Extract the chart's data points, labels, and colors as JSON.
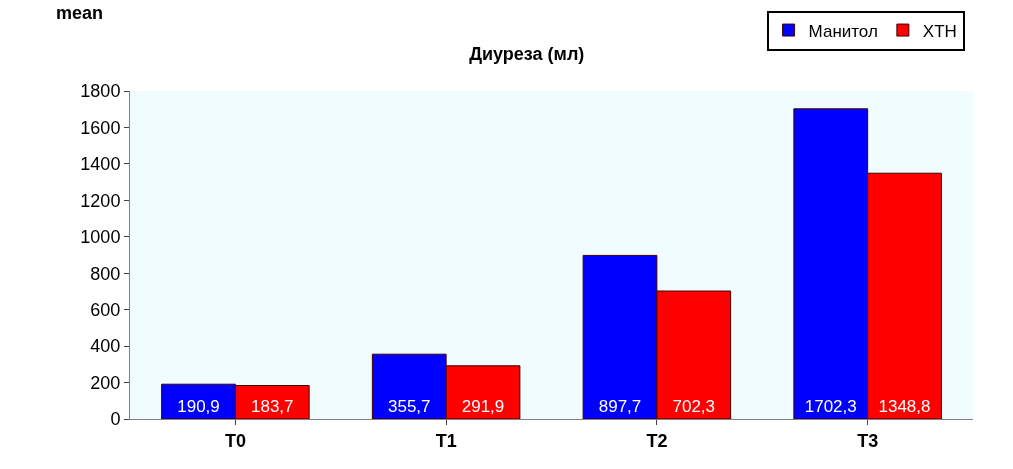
{
  "chart_data": {
    "type": "bar",
    "title": "Диуреза (мл)",
    "ylabel": "mean",
    "categories": [
      "T0",
      "T1",
      "T2",
      "T3"
    ],
    "series": [
      {
        "name": "Манитол",
        "color": "#0000ff",
        "values": [
          190.9,
          355.7,
          897.7,
          1702.3
        ],
        "value_labels": [
          "190,9",
          "355,7",
          "897,7",
          "1702,3"
        ]
      },
      {
        "name": "XTH",
        "color": "#ff0000",
        "values": [
          183.7,
          291.9,
          702.3,
          1348.8
        ],
        "value_labels": [
          "183,7",
          "291,9",
          "702,3",
          "1348,8"
        ]
      }
    ],
    "ylim": [
      0,
      1800
    ],
    "yticks": [
      0,
      200,
      400,
      600,
      800,
      1000,
      1200,
      1400,
      1600,
      1800
    ],
    "legend": "top right",
    "grid": false
  }
}
